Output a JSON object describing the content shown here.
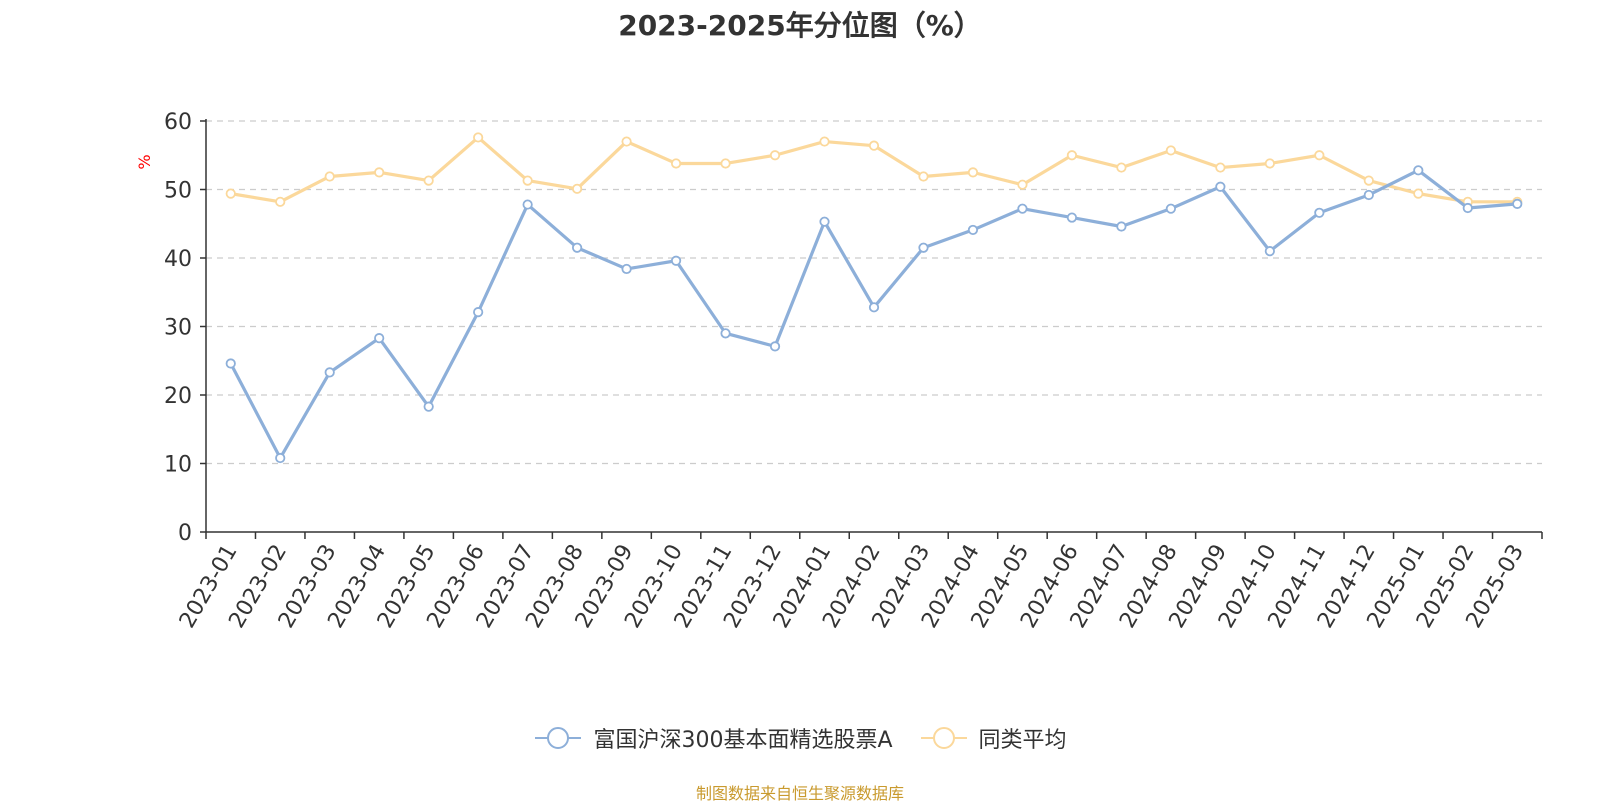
{
  "chart_data": {
    "type": "line",
    "title": "2023-2025年分位图（%）",
    "ylabel": "%",
    "xlabel": "",
    "ylim": [
      0,
      60
    ],
    "yticks": [
      0,
      10,
      20,
      30,
      40,
      50,
      60
    ],
    "grid": true,
    "legend_position": "bottom-center",
    "categories": [
      "2023-01",
      "2023-02",
      "2023-03",
      "2023-04",
      "2023-05",
      "2023-06",
      "2023-07",
      "2023-08",
      "2023-09",
      "2023-10",
      "2023-11",
      "2023-12",
      "2024-01",
      "2024-02",
      "2024-03",
      "2024-04",
      "2024-05",
      "2024-06",
      "2024-07",
      "2024-08",
      "2024-09",
      "2024-10",
      "2024-11",
      "2024-12",
      "2025-01",
      "2025-02",
      "2025-03"
    ],
    "series": [
      {
        "name": "富国沪深300基本面精选股票A",
        "color": "#8dafd9",
        "values": [
          24.6,
          10.8,
          23.3,
          28.3,
          18.3,
          32.1,
          47.8,
          41.5,
          38.4,
          39.6,
          29.0,
          27.1,
          45.3,
          32.8,
          41.5,
          44.1,
          47.2,
          45.9,
          44.6,
          47.2,
          50.4,
          41.0,
          46.6,
          49.2,
          52.8,
          47.3,
          47.9
        ]
      },
      {
        "name": "同类平均",
        "color": "#fbd89b",
        "values": [
          49.4,
          48.2,
          51.9,
          52.5,
          51.3,
          57.6,
          51.3,
          50.1,
          57.0,
          53.8,
          53.8,
          55.0,
          57.0,
          56.4,
          51.9,
          52.5,
          50.7,
          55.0,
          53.2,
          55.7,
          53.2,
          53.8,
          55.0,
          51.3,
          49.4,
          48.2,
          48.2
        ]
      }
    ]
  },
  "source_note": "制图数据来自恒生聚源数据库"
}
